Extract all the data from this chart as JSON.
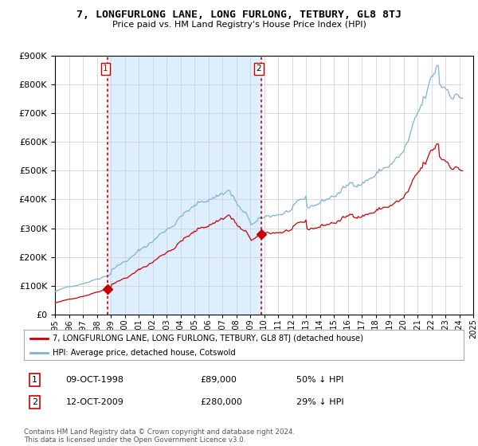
{
  "title": "7, LONGFURLONG LANE, LONG FURLONG, TETBURY, GL8 8TJ",
  "subtitle": "Price paid vs. HM Land Registry's House Price Index (HPI)",
  "legend_line1": "7, LONGFURLONG LANE, LONG FURLONG, TETBURY, GL8 8TJ (detached house)",
  "legend_line2": "HPI: Average price, detached house, Cotswold",
  "transaction1_date": "09-OCT-1998",
  "transaction1_price": "£89,000",
  "transaction1_hpi": "50% ↓ HPI",
  "transaction2_date": "12-OCT-2009",
  "transaction2_price": "£280,000",
  "transaction2_hpi": "29% ↓ HPI",
  "footer": "Contains HM Land Registry data © Crown copyright and database right 2024.\nThis data is licensed under the Open Government Licence v3.0.",
  "hpi_color": "#7ab4d8",
  "price_color": "#cc0000",
  "shade_color": "#ddeeff",
  "background_color": "#ffffff",
  "plot_bg_color": "#ffffff",
  "grid_color": "#cccccc",
  "ylim": [
    0,
    900000
  ],
  "yticks": [
    0,
    100000,
    200000,
    300000,
    400000,
    500000,
    600000,
    700000,
    800000,
    900000
  ],
  "transaction1_x": 1998.78,
  "transaction1_y": 89000,
  "transaction2_x": 2009.78,
  "transaction2_y": 280000,
  "xtick_positions": [
    1995,
    1996,
    1997,
    1998,
    1999,
    2000,
    2001,
    2002,
    2003,
    2004,
    2005,
    2006,
    2007,
    2008,
    2009,
    2010,
    2011,
    2012,
    2013,
    2014,
    2015,
    2016,
    2017,
    2018,
    2019,
    2020,
    2021,
    2022,
    2023,
    2024,
    2025
  ],
  "xtick_labels": [
    "1995",
    "1996",
    "1997",
    "1998",
    "1999",
    "2000",
    "2001",
    "2002",
    "2003",
    "2004",
    "2005",
    "2006",
    "2007",
    "2008",
    "2009",
    "2010",
    "2011",
    "2012",
    "2013",
    "2014",
    "2015",
    "2016",
    "2017",
    "2018",
    "2019",
    "2020",
    "2021",
    "2022",
    "2023",
    "2024",
    "2025"
  ]
}
